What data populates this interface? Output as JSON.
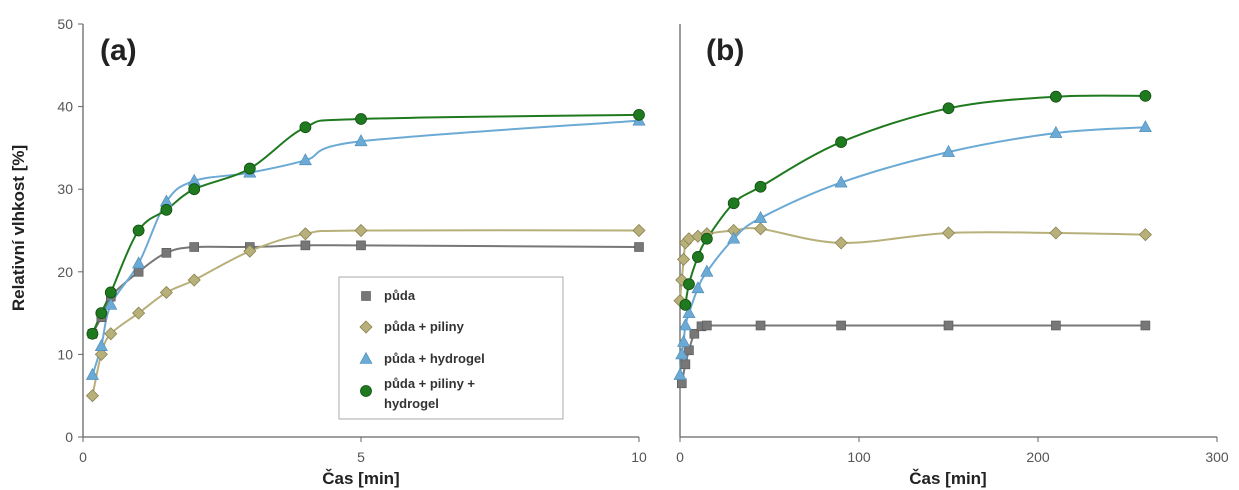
{
  "colors": {
    "puda": "#777777",
    "puda_piliny": "#b8b07a",
    "puda_hydrogel": "#6baad4",
    "puda_piliny_hydrogel": "#1f7a1f"
  },
  "legend": {
    "placement": "inside panel a, bottom-right",
    "entries": [
      {
        "key": "puda",
        "label": "půda",
        "marker": "square"
      },
      {
        "key": "puda_piliny",
        "label": "půda + piliny",
        "marker": "diamond"
      },
      {
        "key": "puda_hydrogel",
        "label": "půda + hydrogel",
        "marker": "triangle"
      },
      {
        "key": "puda_piliny_hydrogel",
        "label_lines": [
          "půda + piliny +",
          "hydrogel"
        ],
        "marker": "circle"
      }
    ]
  },
  "chart_data": [
    {
      "type": "line",
      "panel_label": "(a)",
      "xlabel": "Čas [min]",
      "ylabel": "Relativní vlhkost [%]",
      "xlim": [
        0,
        10
      ],
      "ylim": [
        0,
        50
      ],
      "xticks": [
        0,
        5,
        10
      ],
      "yticks": [
        0,
        10,
        20,
        30,
        40,
        50
      ],
      "grid": false,
      "series": [
        {
          "key": "puda",
          "name": "půda",
          "marker": "square",
          "x": [
            0.17,
            0.33,
            0.5,
            1.0,
            1.5,
            2.0,
            3.0,
            4.0,
            5.0,
            10.0
          ],
          "y": [
            12.5,
            14.5,
            17.0,
            20.0,
            22.3,
            23.0,
            23.0,
            23.2,
            23.2,
            23.0
          ]
        },
        {
          "key": "puda_piliny",
          "name": "půda + piliny",
          "marker": "diamond",
          "x": [
            0.17,
            0.33,
            0.5,
            1.0,
            1.5,
            2.0,
            3.0,
            4.0,
            5.0,
            10.0
          ],
          "y": [
            5.0,
            10.0,
            12.5,
            15.0,
            17.5,
            19.0,
            22.5,
            24.6,
            25.0,
            25.0
          ]
        },
        {
          "key": "puda_hydrogel",
          "name": "půda + hydrogel",
          "marker": "triangle",
          "x": [
            0.17,
            0.33,
            0.5,
            1.0,
            1.5,
            2.0,
            3.0,
            4.0,
            5.0,
            10.0
          ],
          "y": [
            7.5,
            11.0,
            16.0,
            21.0,
            28.5,
            31.0,
            32.0,
            33.5,
            35.8,
            38.3
          ]
        },
        {
          "key": "puda_piliny_hydrogel",
          "name": "půda + piliny + hydrogel",
          "marker": "circle",
          "x": [
            0.17,
            0.33,
            0.5,
            1.0,
            1.5,
            2.0,
            3.0,
            4.0,
            5.0,
            10.0
          ],
          "y": [
            12.5,
            15.0,
            17.5,
            25.0,
            27.5,
            30.0,
            32.5,
            37.5,
            38.5,
            39.0
          ]
        }
      ]
    },
    {
      "type": "line",
      "panel_label": "(b)",
      "xlabel": "Čas [min]",
      "ylabel": "",
      "xlim": [
        0,
        300
      ],
      "ylim": [
        0,
        50
      ],
      "xticks": [
        0,
        100,
        200,
        300
      ],
      "yticks": [],
      "grid": false,
      "series": [
        {
          "key": "puda",
          "name": "půda",
          "marker": "square",
          "x": [
            1,
            3,
            5,
            8,
            12,
            15,
            45,
            90,
            150,
            210,
            260
          ],
          "y": [
            6.5,
            8.8,
            10.5,
            12.5,
            13.4,
            13.5,
            13.5,
            13.5,
            13.5,
            13.5,
            13.5
          ]
        },
        {
          "key": "puda_piliny",
          "name": "půda + piliny",
          "marker": "diamond",
          "x": [
            0,
            1,
            2,
            3,
            5,
            10,
            15,
            30,
            45,
            90,
            150,
            210,
            260
          ],
          "y": [
            16.5,
            19.0,
            21.5,
            23.5,
            24.0,
            24.3,
            24.6,
            25.0,
            25.2,
            23.5,
            24.7,
            24.7,
            24.5
          ]
        },
        {
          "key": "puda_hydrogel",
          "name": "půda + hydrogel",
          "marker": "triangle",
          "x": [
            0,
            1,
            2,
            3,
            5,
            10,
            15,
            30,
            45,
            90,
            150,
            210,
            260
          ],
          "y": [
            7.5,
            10.0,
            11.5,
            13.5,
            15.0,
            18.0,
            20.0,
            24.0,
            26.5,
            30.8,
            34.5,
            36.8,
            37.5
          ]
        },
        {
          "key": "puda_piliny_hydrogel",
          "name": "půda + piliny + hydrogel",
          "marker": "circle",
          "x": [
            3,
            5,
            10,
            15,
            30,
            45,
            90,
            150,
            210,
            260
          ],
          "y": [
            16.0,
            18.5,
            21.8,
            24.0,
            28.3,
            30.3,
            35.7,
            39.8,
            41.2,
            41.3
          ]
        }
      ]
    }
  ]
}
